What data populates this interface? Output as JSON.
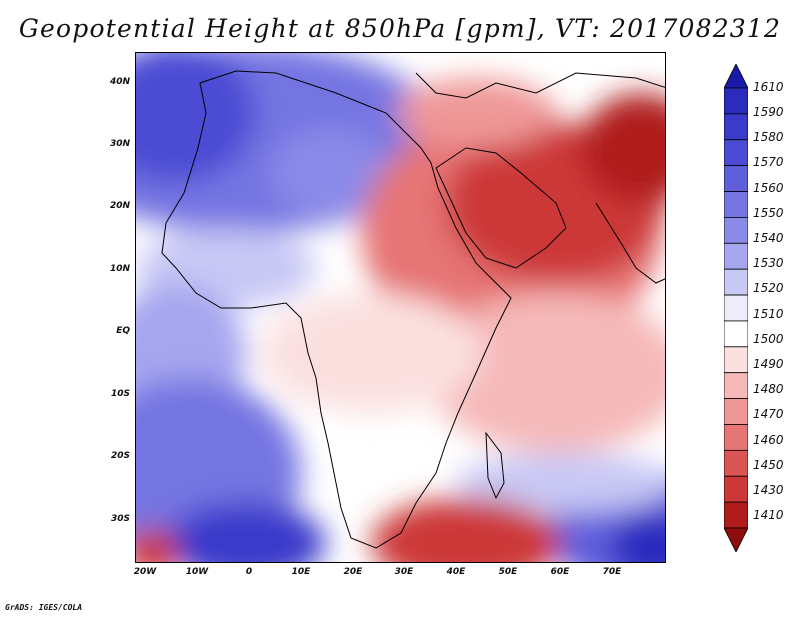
{
  "title": "Geopotential Height at 850hPa [gpm], VT: 2017082312",
  "footer": "GrADS: IGES/COLA",
  "lat_labels": [
    "40N",
    "30N",
    "20N",
    "10N",
    "EQ",
    "10S",
    "20S",
    "30S"
  ],
  "lon_labels": [
    "20W",
    "10W",
    "0",
    "10E",
    "20E",
    "30E",
    "40E",
    "50E",
    "60E",
    "70E"
  ],
  "map_extent": {
    "lon_min": -22,
    "lon_max": 81,
    "lat_min": -37,
    "lat_max": 45
  },
  "colorbar": {
    "levels": [
      "1610",
      "1590",
      "1580",
      "1570",
      "1560",
      "1550",
      "1540",
      "1530",
      "1520",
      "1510",
      "1500",
      "1490",
      "1480",
      "1470",
      "1460",
      "1450",
      "1430",
      "1410"
    ],
    "colors": [
      "#1a1aa8",
      "#2b2bbe",
      "#3a3acb",
      "#4b4bd4",
      "#5f5fdc",
      "#7474e2",
      "#8a8ae8",
      "#a6a6ef",
      "#c8c8f5",
      "#ececfb",
      "#ffffff",
      "#fbe0e0",
      "#f5b9b9",
      "#ef9797",
      "#e67575",
      "#db5555",
      "#cc3838",
      "#b01c1c",
      "#8e0c0c"
    ]
  }
}
